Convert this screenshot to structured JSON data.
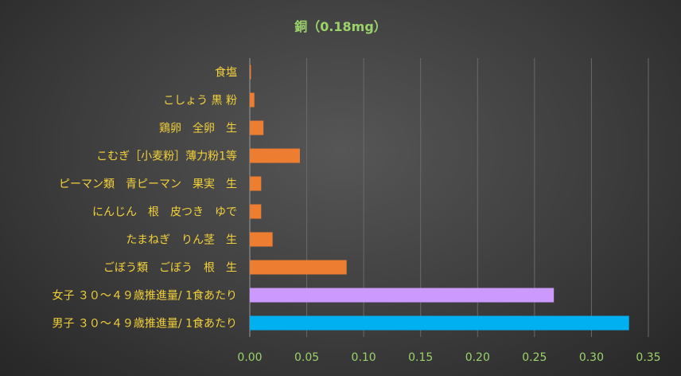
{
  "chart_data": {
    "type": "bar",
    "orientation": "horizontal",
    "title": "銅（0.18mg）",
    "categories": [
      "食塩",
      "こしょう 黒 粉",
      "鶏卵　全卵　生",
      "こむぎ［小麦粉］薄力粉1等",
      "ピーマン類　青ピーマン　果実　生",
      "にんじん　根　皮つき　ゆで",
      "たまねぎ　りん茎　生",
      "ごぼう類　ごぼう　根　生",
      "女子 ３０～４９歳推進量/ 1食あたり",
      "男子 ３０～４９歳推進量/ 1食あたり"
    ],
    "values": [
      0.001,
      0.004,
      0.012,
      0.044,
      0.01,
      0.01,
      0.02,
      0.085,
      0.267,
      0.333
    ],
    "bar_colors": [
      "#ed7d31",
      "#ed7d31",
      "#ed7d31",
      "#ed7d31",
      "#ed7d31",
      "#ed7d31",
      "#ed7d31",
      "#ed7d31",
      "#cc99ff",
      "#00b0f0"
    ],
    "xlim": [
      0,
      0.35
    ],
    "xticks": [
      "0.00",
      "0.05",
      "0.10",
      "0.15",
      "0.20",
      "0.25",
      "0.30",
      "0.35"
    ],
    "xlabel": "",
    "ylabel": "",
    "grid": true,
    "legend": "none"
  },
  "colors": {
    "category_label": "#f2d13a",
    "tick_label": "#9bd36b",
    "title": "#9bd36b"
  }
}
